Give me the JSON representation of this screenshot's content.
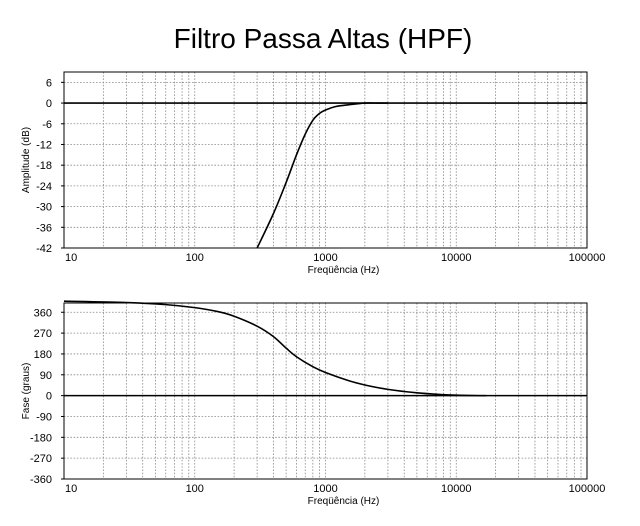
{
  "title": "Filtro Passa Altas (HPF)",
  "chart_data": [
    {
      "type": "line",
      "xscale": "log",
      "xlim": [
        10,
        100000
      ],
      "ylim": [
        -42,
        9
      ],
      "x_ticks": [
        10,
        100,
        1000,
        10000,
        100000
      ],
      "x_tick_labels": [
        "10",
        "100",
        "1000",
        "10000",
        "100000"
      ],
      "y_ticks": [
        6,
        0,
        -6,
        -12,
        -18,
        -24,
        -30,
        -36,
        -42
      ],
      "y_tick_labels": [
        "6",
        "0",
        "-6",
        "-12",
        "-18",
        "-24",
        "-30",
        "-36",
        "-42"
      ],
      "xlabel": "Freqüência (Hz)",
      "ylabel": "Amplitude (dB)",
      "grid": true,
      "series": [
        {
          "x": [
            300,
            400,
            500,
            600,
            700,
            800,
            900,
            1000,
            1200,
            1500,
            2000,
            2500,
            3000
          ],
          "y": [
            -42,
            -32,
            -23,
            -15,
            -9,
            -5,
            -3,
            -2,
            -1,
            -0.5,
            0,
            0,
            0
          ]
        }
      ],
      "reference_lines": [
        {
          "y": 0
        }
      ]
    },
    {
      "type": "line",
      "xscale": "log",
      "xlim": [
        10,
        100000
      ],
      "ylim": [
        -360,
        400
      ],
      "x_ticks": [
        10,
        100,
        1000,
        10000,
        100000
      ],
      "x_tick_labels": [
        "10",
        "100",
        "1000",
        "10000",
        "100000"
      ],
      "y_ticks": [
        360,
        270,
        180,
        90,
        0,
        -90,
        -180,
        -270,
        -360
      ],
      "y_tick_labels": [
        "360",
        "270",
        "180",
        "90",
        "0",
        "-90",
        "-180",
        "-270",
        "-360"
      ],
      "xlabel": "Freqüência (Hz)",
      "ylabel": "Fase (graus)",
      "grid": true,
      "series": [
        {
          "x": [
            10,
            30,
            60,
            100,
            150,
            200,
            300,
            400,
            500,
            600,
            800,
            1000,
            1500,
            2000,
            3000,
            5000,
            8000,
            10000,
            15000,
            17000
          ],
          "y": [
            408,
            402,
            393,
            380,
            363,
            343,
            300,
            255,
            205,
            168,
            125,
            100,
            65,
            46,
            27,
            12,
            4,
            2,
            0,
            0
          ]
        }
      ],
      "reference_lines": [
        {
          "y": 0
        }
      ]
    }
  ]
}
